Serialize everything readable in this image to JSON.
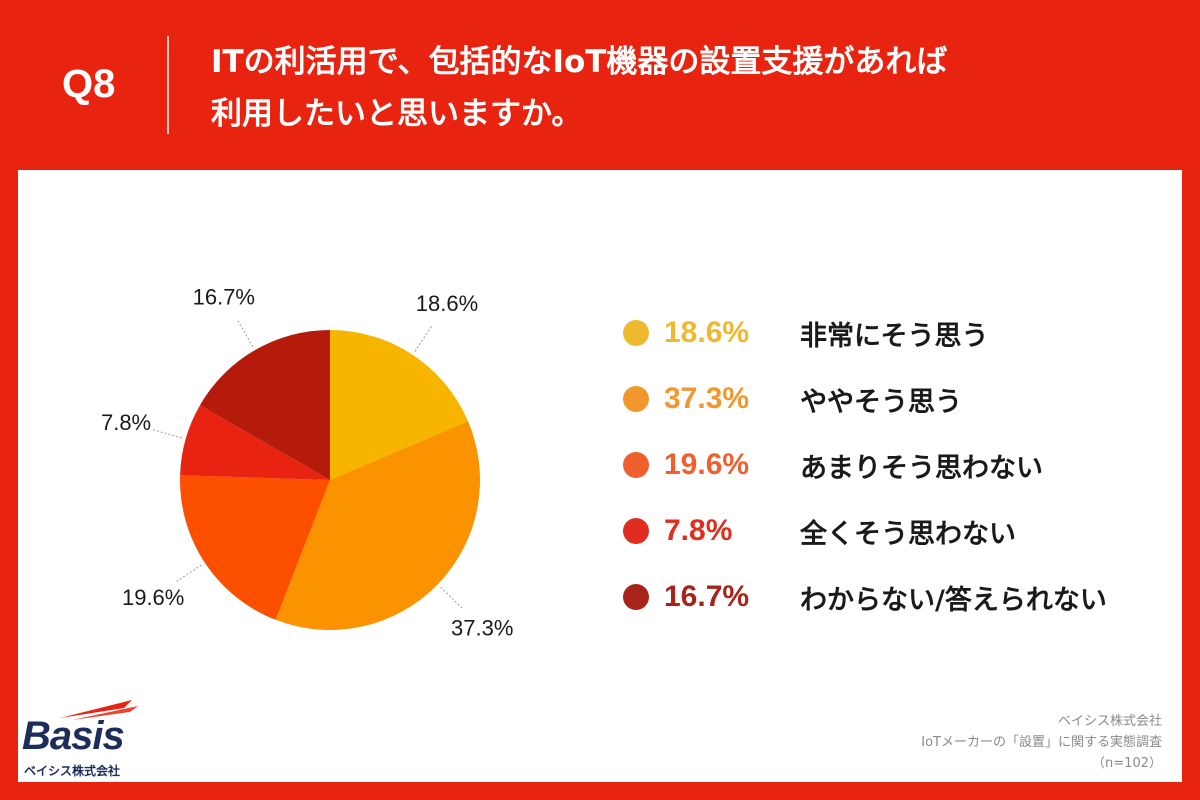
{
  "header": {
    "question_label": "Q8",
    "title_line1": "ITの利活用で、包括的なIoT機器の設置支援があれば",
    "title_line2": "利用したいと思いますか。"
  },
  "chart_data": {
    "type": "pie",
    "title": "ITの利活用で、包括的なIoT機器の設置支援があれば利用したいと思いますか。",
    "categories": [
      "非常にそう思う",
      "ややそう思う",
      "あまりそう思わない",
      "全くそう思わない",
      "わからない/答えられない"
    ],
    "values": [
      18.6,
      37.3,
      19.6,
      7.8,
      16.7
    ],
    "value_labels": [
      "18.6%",
      "37.3%",
      "19.6%",
      "7.8%",
      "16.7%"
    ],
    "colors": [
      "#f8b500",
      "#fb9200",
      "#fc5000",
      "#e82312",
      "#b41b0a"
    ],
    "legend_colors": [
      "#efb92f",
      "#f2972e",
      "#ef602e",
      "#e02d20",
      "#a8231a"
    ],
    "start_angle": "12 o'clock",
    "direction": "clockwise",
    "legend_position": "right"
  },
  "legend": {
    "items": [
      {
        "pct": "18.6%",
        "label": "非常にそう思う",
        "color": "#efb92f"
      },
      {
        "pct": "37.3%",
        "label": "ややそう思う",
        "color": "#f2972e"
      },
      {
        "pct": "19.6%",
        "label": "あまりそう思わない",
        "color": "#ef602e"
      },
      {
        "pct": "7.8%",
        "label": "全くそう思わない",
        "color": "#e02d20"
      },
      {
        "pct": "16.7%",
        "label": "わからない/答えられない",
        "color": "#a8231a"
      }
    ]
  },
  "logo": {
    "word": "Basis",
    "company": "ベイシス株式会社"
  },
  "source": {
    "company": "ベイシス株式会社",
    "survey": "IoTメーカーの「設置」に関する実態調査",
    "sample": "（n=102）"
  },
  "colors": {
    "background": "#e8230f",
    "panel": "#ffffff",
    "legend_text": "#1a1a1a",
    "logo": "#1c2d5a"
  }
}
